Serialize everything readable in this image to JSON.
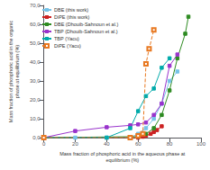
{
  "chart_data": {
    "type": "line",
    "xlabel": "Mass fraction of phosphoric acid in the aqueous phase at\nequilibrium (%)",
    "ylabel": "Mass fraction of phosphoric acid in the organic\nphase at equilibrium (%)",
    "xlim": [
      0,
      100
    ],
    "ylim": [
      0,
      70
    ],
    "xticks": [
      0,
      20,
      40,
      60,
      80,
      100
    ],
    "yticks": [
      {
        "value": 0,
        "label": "0,0"
      },
      {
        "value": 10,
        "label": "10,0"
      },
      {
        "value": 20,
        "label": "20,0"
      },
      {
        "value": 30,
        "label": "30,0"
      },
      {
        "value": 40,
        "label": "40,0"
      },
      {
        "value": 50,
        "label": "50,0"
      },
      {
        "value": 60,
        "label": "60,0"
      },
      {
        "value": 70,
        "label": "70,0"
      }
    ],
    "grid": false,
    "legend": "upper left",
    "series": [
      {
        "name": "DBE (this work)",
        "color": "#74C2E8",
        "marker": "square",
        "line_style": "solid",
        "x": [
          0,
          20,
          40,
          55,
          60,
          65,
          70,
          75,
          80,
          85
        ],
        "values": [
          0,
          0,
          0,
          0,
          2,
          5,
          10,
          18,
          30,
          35
        ]
      },
      {
        "name": "DiPE (this work)",
        "color": "#CC2222",
        "marker": "square",
        "line_style": "solid",
        "x": [
          0,
          60,
          63,
          65,
          68,
          70,
          72,
          75
        ],
        "values": [
          0,
          0,
          0.5,
          1,
          2,
          3,
          4,
          6
        ]
      },
      {
        "name": "DBE (Dhouib-Sahnoun et al.)",
        "color": "#2E8B22",
        "marker": "square",
        "line_style": "solid",
        "x": [
          0,
          60,
          65,
          70,
          75,
          80,
          85,
          90,
          92
        ],
        "values": [
          0,
          0.5,
          2,
          5,
          12,
          25,
          42,
          55,
          64
        ]
      },
      {
        "name": "TBP (Dhouib-Sahnoun et al.)",
        "color": "#9933CC",
        "marker": "square",
        "line_style": "solid",
        "x": [
          0,
          20,
          40,
          55,
          60,
          65,
          70,
          75,
          80,
          85
        ],
        "values": [
          0,
          3.5,
          5.5,
          6.5,
          7,
          8,
          12,
          18,
          38,
          44
        ]
      },
      {
        "name": "TBP (Yacu)",
        "color": "#00AAAA",
        "marker": "square",
        "line_style": "solid",
        "x": [
          0,
          40,
          55,
          60,
          65,
          70,
          75,
          80
        ],
        "values": [
          0,
          0,
          5,
          14,
          22,
          26,
          37,
          42
        ]
      },
      {
        "name": "DiPE (Yacu)",
        "color": "#E87820",
        "marker": "open_square",
        "line_style": "dashed",
        "x": [
          0,
          55,
          60,
          63,
          65,
          67,
          70
        ],
        "values": [
          0,
          0,
          1,
          2,
          39,
          47,
          57
        ]
      }
    ]
  }
}
